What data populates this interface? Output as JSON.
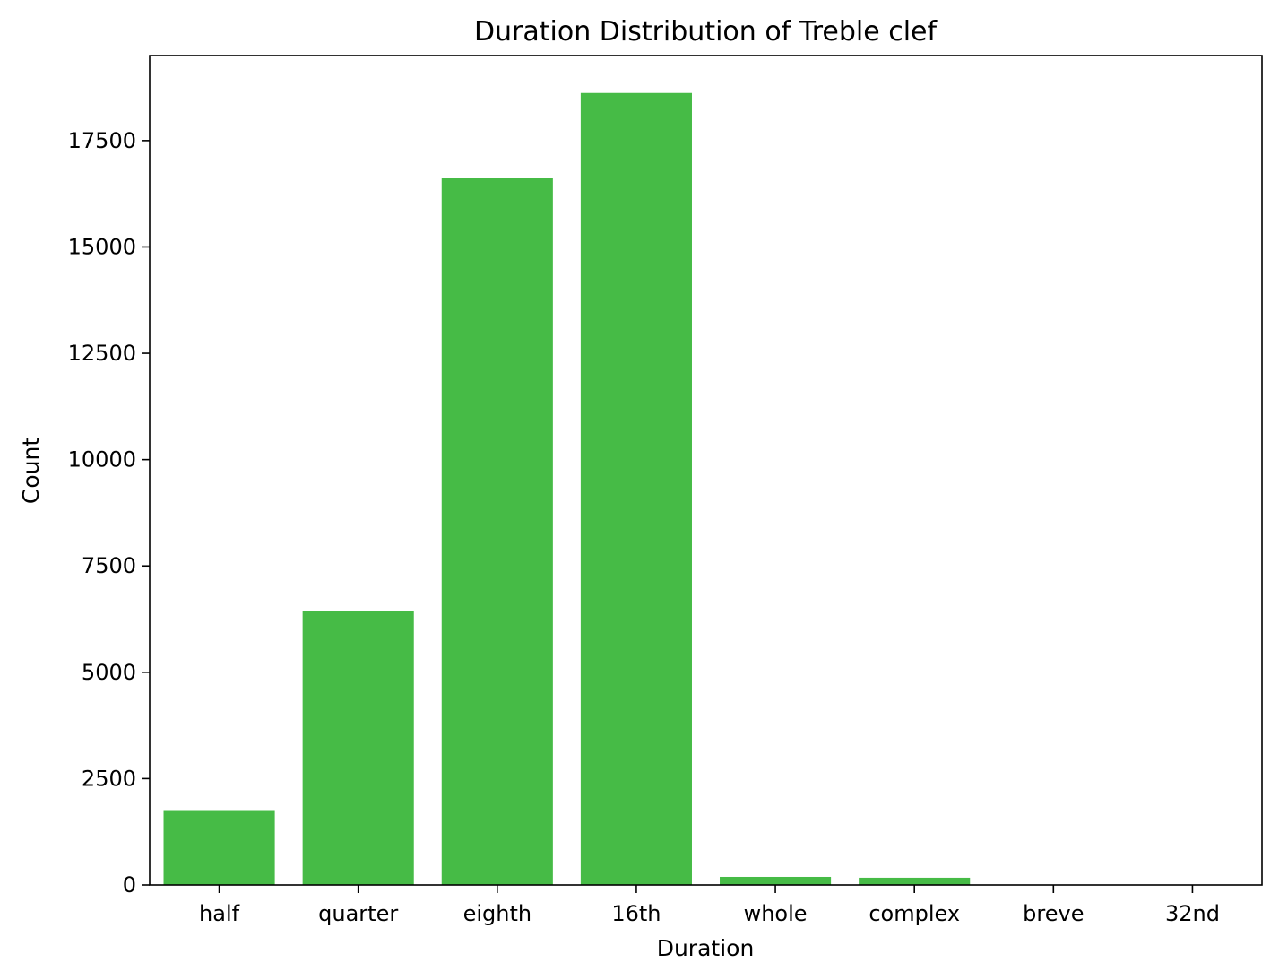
{
  "chart_data": {
    "type": "bar",
    "title": "Duration Distribution of Treble clef",
    "xlabel": "Duration",
    "ylabel": "Count",
    "categories": [
      "half",
      "quarter",
      "eighth",
      "16th",
      "whole",
      "complex",
      "breve",
      "32nd"
    ],
    "values": [
      1760,
      6430,
      16620,
      18620,
      190,
      170,
      5,
      3
    ],
    "ylim": [
      0,
      19500
    ],
    "yticks": [
      0,
      2500,
      5000,
      7500,
      10000,
      12500,
      15000,
      17500
    ],
    "bar_color": "#46bb46",
    "grid": false,
    "legend": "none"
  }
}
